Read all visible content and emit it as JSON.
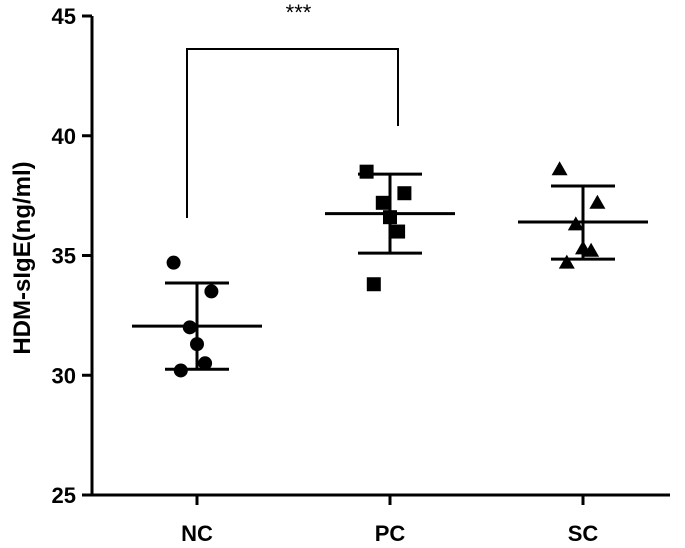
{
  "chart_data": {
    "type": "scatter",
    "subtype": "dot-plot with mean and SD error bars",
    "title": "",
    "xlabel": "",
    "ylabel": "HDM-sIgE(ng/ml)",
    "ylim": [
      25,
      45
    ],
    "yticks": [
      25,
      30,
      35,
      40,
      45
    ],
    "categories": [
      "NC",
      "PC",
      "SC"
    ],
    "grid": false,
    "legend": "none",
    "series": [
      {
        "category": "NC",
        "marker": "circle",
        "points": [
          34.7,
          33.5,
          32.0,
          31.3,
          30.5,
          30.2
        ],
        "mean": 32.05,
        "sd_upper": 33.85,
        "sd_lower": 30.25
      },
      {
        "category": "PC",
        "marker": "square",
        "points": [
          38.5,
          37.6,
          37.2,
          36.6,
          36.0,
          33.8
        ],
        "mean": 36.75,
        "sd_upper": 38.4,
        "sd_lower": 35.1
      },
      {
        "category": "SC",
        "marker": "triangle",
        "points": [
          38.6,
          37.2,
          36.3,
          35.3,
          35.2,
          34.7
        ],
        "mean": 36.4,
        "sd_upper": 37.9,
        "sd_lower": 34.85
      }
    ],
    "annotations": [
      {
        "type": "significance-bracket",
        "from": "NC",
        "to": "PC",
        "label": "***"
      }
    ]
  }
}
